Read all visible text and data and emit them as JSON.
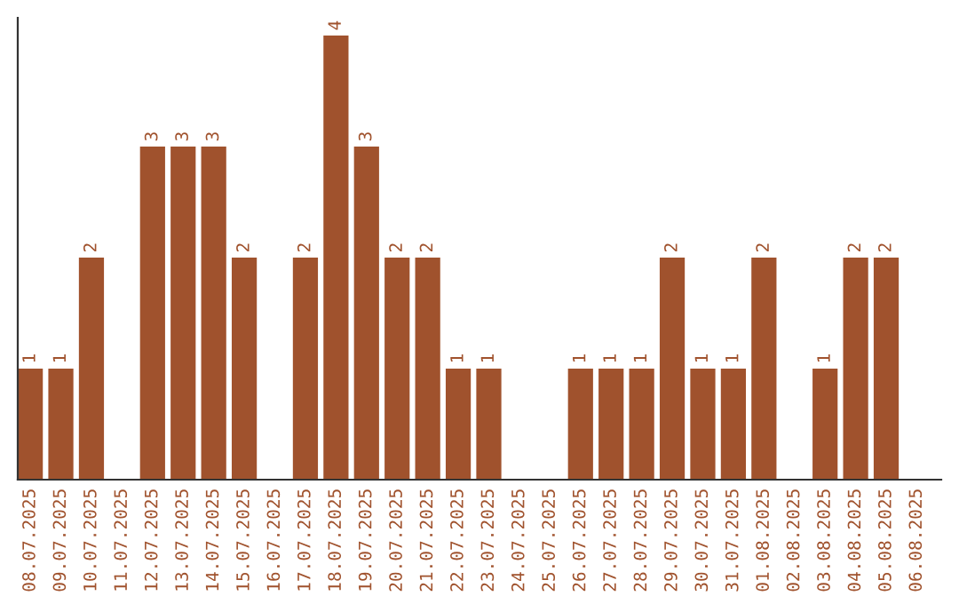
{
  "chart_data": {
    "type": "bar",
    "categories": [
      "08.07.2025",
      "09.07.2025",
      "10.07.2025",
      "11.07.2025",
      "12.07.2025",
      "13.07.2025",
      "14.07.2025",
      "15.07.2025",
      "16.07.2025",
      "17.07.2025",
      "18.07.2025",
      "19.07.2025",
      "20.07.2025",
      "21.07.2025",
      "22.07.2025",
      "23.07.2025",
      "24.07.2025",
      "25.07.2025",
      "26.07.2025",
      "27.07.2025",
      "28.07.2025",
      "29.07.2025",
      "30.07.2025",
      "31.07.2025",
      "01.08.2025",
      "02.08.2025",
      "03.08.2025",
      "04.08.2025",
      "05.08.2025",
      "06.08.2025"
    ],
    "values": [
      1,
      1,
      2,
      0,
      3,
      3,
      3,
      2,
      0,
      2,
      4,
      3,
      2,
      2,
      1,
      1,
      0,
      0,
      1,
      1,
      1,
      2,
      1,
      1,
      2,
      0,
      1,
      2,
      2,
      0
    ],
    "value_labels": [
      "1",
      "1",
      "2",
      null,
      "3",
      "3",
      "3",
      "2",
      null,
      "2",
      "4",
      "3",
      "2",
      "2",
      "1",
      "1",
      null,
      null,
      "1",
      "1",
      "1",
      "2",
      "1",
      "1",
      "2",
      null,
      "1",
      "2",
      "2",
      null
    ],
    "color": "#a0522d",
    "ylim": [
      0,
      4.16
    ],
    "tick_labels": "x",
    "grid": false,
    "legend": false
  }
}
